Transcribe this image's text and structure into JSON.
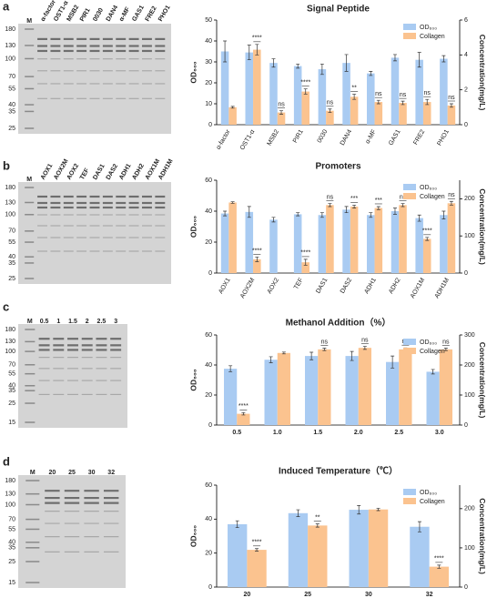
{
  "chart_data": [
    {
      "type": "bar",
      "panel": "a",
      "title": "Signal Peptide",
      "ylabel": "OD₆₀₀",
      "y2label": "Concentration(mg/L)",
      "categories": [
        "α-factor",
        "OST1-α",
        "MSB2",
        "PIR1",
        "0030",
        "DAN4",
        "α-MF",
        "GAS1",
        "FRE2",
        "PHO1"
      ],
      "series": [
        {
          "name": "OD₆₀₀",
          "color": "#a9cbf2",
          "values": [
            35,
            34.5,
            29.5,
            28,
            26.5,
            29.5,
            24.5,
            32,
            31,
            31.5
          ],
          "errors": [
            5,
            3.5,
            2,
            1,
            2.5,
            4,
            1,
            1.5,
            3.5,
            1.5
          ]
        },
        {
          "name": "Collagen",
          "color": "#fbc38f",
          "axis": "y2",
          "values": [
            1.0,
            4.3,
            0.7,
            1.9,
            0.8,
            1.6,
            1.3,
            1.25,
            1.3,
            1.1
          ],
          "errors": [
            0.05,
            0.3,
            0.1,
            0.15,
            0.1,
            0.15,
            0.1,
            0.1,
            0.15,
            0.1
          ]
        }
      ],
      "annotations": [
        null,
        "****",
        "ns",
        "****",
        "ns",
        "**",
        "ns",
        "ns",
        "ns",
        "ns"
      ],
      "ylim": [
        0,
        50
      ],
      "yticks": [
        0,
        10,
        20,
        30,
        40,
        50
      ],
      "y2lim": [
        0,
        6
      ],
      "y2ticks": [
        0,
        2,
        4,
        6
      ],
      "legend": "upper right",
      "rotate_labels": true
    },
    {
      "type": "bar",
      "panel": "b",
      "title": "Promoters",
      "ylabel": "OD₆₀₀",
      "y2label": "Concentration(mg/L)",
      "categories": [
        "AOX1",
        "AOX2M",
        "AOX2",
        "TEF",
        "DAS1",
        "DAS2",
        "ADH1",
        "ADH2",
        "AOX1M",
        "ADH1M"
      ],
      "series": [
        {
          "name": "OD₆₀₀",
          "color": "#a9cbf2",
          "values": [
            38.5,
            39.5,
            34.5,
            38,
            37.5,
            41,
            37.5,
            40,
            35.5,
            37.5
          ],
          "errors": [
            1.5,
            3.5,
            1.5,
            1,
            1.5,
            2,
            1.5,
            2,
            2,
            2.5
          ]
        },
        {
          "name": "Collagen",
          "color": "#fbc38f",
          "axis": "y2",
          "values": [
            190,
            37,
            null,
            29,
            183,
            179,
            175,
            183,
            92,
            188
          ],
          "errors": [
            2,
            6,
            null,
            8,
            4,
            4,
            4,
            4,
            4,
            5
          ]
        }
      ],
      "annotations": [
        null,
        "****",
        null,
        "****",
        "ns",
        "***",
        "***",
        "ns",
        "****",
        "ns"
      ],
      "ylim": [
        0,
        60
      ],
      "yticks": [
        0,
        20,
        40,
        60
      ],
      "y2lim": [
        0,
        250
      ],
      "y2ticks": [
        0,
        100,
        200
      ],
      "legend": "upper right",
      "rotate_labels": true
    },
    {
      "type": "bar",
      "panel": "c",
      "title": "Methanol Addition（%）",
      "ylabel": "OD₆₀₀",
      "y2label": "Concentration(mg/L)",
      "categories": [
        "0.5",
        "1.0",
        "1.5",
        "2.0",
        "2.5",
        "3.0"
      ],
      "series": [
        {
          "name": "OD₆₀₀",
          "color": "#a9cbf2",
          "values": [
            37.5,
            43.5,
            46,
            46,
            42,
            35.5
          ],
          "errors": [
            2,
            2,
            2.5,
            3,
            4,
            1.5
          ]
        },
        {
          "name": "Collagen",
          "color": "#fbc38f",
          "axis": "y2",
          "values": [
            37.5,
            240,
            252,
            257,
            252,
            252
          ],
          "errors": [
            4,
            3,
            4,
            5,
            5,
            4
          ]
        }
      ],
      "annotations": [
        "****",
        null,
        "ns",
        "ns",
        "ns",
        "ns"
      ],
      "ylim": [
        0,
        60
      ],
      "yticks": [
        0,
        20,
        40,
        60
      ],
      "y2lim": [
        0,
        300
      ],
      "y2ticks": [
        0,
        100,
        200,
        300
      ],
      "legend": "upper right",
      "rotate_labels": false
    },
    {
      "type": "bar",
      "panel": "d",
      "title": "Induced Temperature（℃）",
      "ylabel": "OD₆₀₀",
      "y2label": "Concentration(mg/L)",
      "categories": [
        "20",
        "25",
        "30",
        "32"
      ],
      "series": [
        {
          "name": "OD₆₀₀",
          "color": "#a9cbf2",
          "values": [
            37,
            43.5,
            45.5,
            35.5
          ],
          "errors": [
            2,
            2,
            2.5,
            3
          ]
        },
        {
          "name": "Collagen",
          "color": "#fbc38f",
          "axis": "y2",
          "values": [
            95,
            157,
            198,
            52
          ],
          "errors": [
            3,
            4,
            3,
            4
          ]
        }
      ],
      "annotations": [
        "****",
        "**",
        null,
        "****"
      ],
      "ylim": [
        0,
        60
      ],
      "yticks": [
        0,
        20,
        40,
        60
      ],
      "y2lim": [
        0,
        260
      ],
      "y2ticks": [
        0,
        100,
        200
      ],
      "legend": "upper right",
      "rotate_labels": false
    }
  ],
  "gels": [
    {
      "lanes": [
        "M",
        "α-factor",
        "OST1-α",
        "MSB2",
        "PIR1",
        "0030",
        "DAN4",
        "α-MF",
        "GAS1",
        "FRE2",
        "PHO1"
      ],
      "markers": [
        180,
        130,
        100,
        70,
        55,
        40,
        35,
        25
      ]
    },
    {
      "lanes": [
        "M",
        "AOX1",
        "AOX2M",
        "AOX2",
        "TEF",
        "DAS1",
        "DAS2",
        "ADH1",
        "ADH2",
        "AOX1M",
        "ADH1M"
      ],
      "markers": [
        180,
        130,
        100,
        70,
        55,
        40,
        35,
        25
      ]
    },
    {
      "lanes": [
        "M",
        "0.5",
        "1",
        "1.5",
        "2",
        "2.5",
        "3"
      ],
      "markers": [
        180,
        130,
        100,
        70,
        55,
        40,
        35,
        25,
        15
      ]
    },
    {
      "lanes": [
        "M",
        "20",
        "25",
        "30",
        "32"
      ],
      "markers": [
        180,
        130,
        100,
        70,
        55,
        40,
        35,
        25,
        15
      ]
    }
  ]
}
